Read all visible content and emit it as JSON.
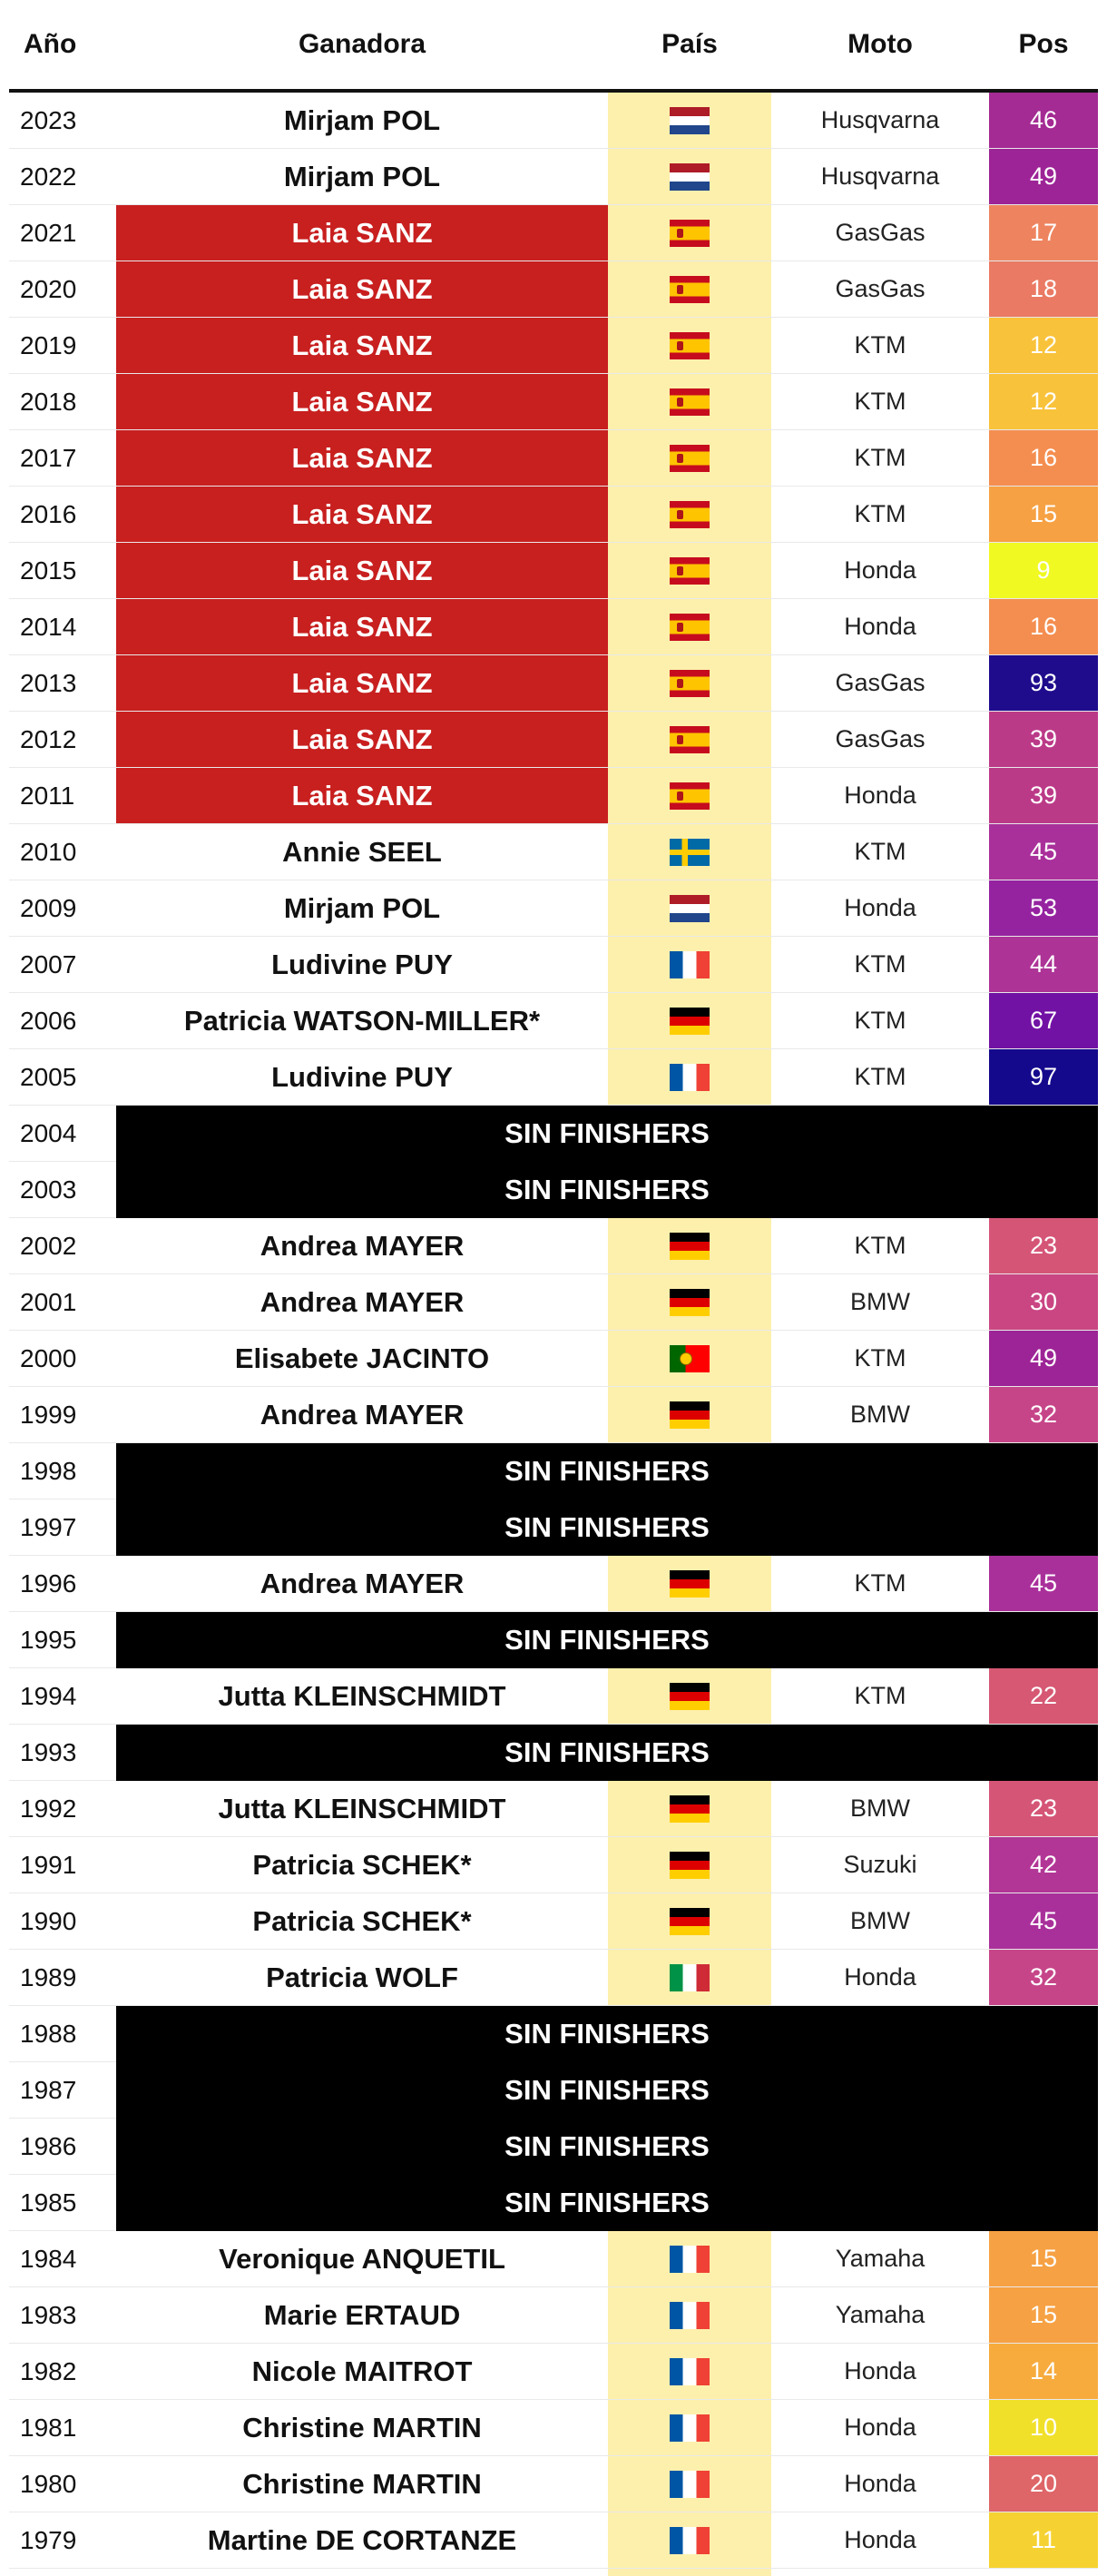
{
  "headers": {
    "year": "Año",
    "winner": "Ganadora",
    "country": "País",
    "bike": "Moto",
    "pos": "Pos"
  },
  "no_finishers_label": "SIN FINISHERS",
  "rows": [
    {
      "year": "2023",
      "name": "Mirjam POL",
      "flag": "nl",
      "bike": "Husqvarna",
      "pos": "46",
      "pos_color": "#a42b93"
    },
    {
      "year": "2022",
      "name": "Mirjam POL",
      "flag": "nl",
      "bike": "Husqvarna",
      "pos": "49",
      "pos_color": "#9d2496"
    },
    {
      "year": "2021",
      "name": "Laia SANZ",
      "flag": "es",
      "bike": "GasGas",
      "pos": "17",
      "pos_color": "#ee845f",
      "highlight": true
    },
    {
      "year": "2020",
      "name": "Laia SANZ",
      "flag": "es",
      "bike": "GasGas",
      "pos": "18",
      "pos_color": "#ea7a63",
      "highlight": true
    },
    {
      "year": "2019",
      "name": "Laia SANZ",
      "flag": "es",
      "bike": "KTM",
      "pos": "12",
      "pos_color": "#f8c23a",
      "highlight": true
    },
    {
      "year": "2018",
      "name": "Laia SANZ",
      "flag": "es",
      "bike": "KTM",
      "pos": "12",
      "pos_color": "#f8c23a",
      "highlight": true
    },
    {
      "year": "2017",
      "name": "Laia SANZ",
      "flag": "es",
      "bike": "KTM",
      "pos": "16",
      "pos_color": "#f48e50",
      "highlight": true
    },
    {
      "year": "2016",
      "name": "Laia SANZ",
      "flag": "es",
      "bike": "KTM",
      "pos": "15",
      "pos_color": "#f6a143",
      "highlight": true
    },
    {
      "year": "2015",
      "name": "Laia SANZ",
      "flag": "es",
      "bike": "Honda",
      "pos": "9",
      "pos_color": "#f0f921",
      "highlight": true
    },
    {
      "year": "2014",
      "name": "Laia SANZ",
      "flag": "es",
      "bike": "Honda",
      "pos": "16",
      "pos_color": "#f48e50",
      "highlight": true
    },
    {
      "year": "2013",
      "name": "Laia SANZ",
      "flag": "es",
      "bike": "GasGas",
      "pos": "93",
      "pos_color": "#1f0c8d",
      "highlight": true
    },
    {
      "year": "2012",
      "name": "Laia SANZ",
      "flag": "es",
      "bike": "GasGas",
      "pos": "39",
      "pos_color": "#bb3a88",
      "highlight": true
    },
    {
      "year": "2011",
      "name": "Laia SANZ",
      "flag": "es",
      "bike": "Honda",
      "pos": "39",
      "pos_color": "#bb3a88",
      "highlight": true
    },
    {
      "year": "2010",
      "name": "Annie SEEL",
      "flag": "se",
      "bike": "KTM",
      "pos": "45",
      "pos_color": "#a9309a"
    },
    {
      "year": "2009",
      "name": "Mirjam POL",
      "flag": "nl",
      "bike": "Honda",
      "pos": "53",
      "pos_color": "#9523a0"
    },
    {
      "year": "2007",
      "name": "Ludivine PUY",
      "flag": "fr",
      "bike": "KTM",
      "pos": "44",
      "pos_color": "#ad3396"
    },
    {
      "year": "2006",
      "name": "Patricia WATSON-MILLER*",
      "flag": "de",
      "bike": "KTM",
      "pos": "67",
      "pos_color": "#7212a4"
    },
    {
      "year": "2005",
      "name": "Ludivine PUY",
      "flag": "fr",
      "bike": "KTM",
      "pos": "97",
      "pos_color": "#14098c"
    },
    {
      "year": "2004",
      "no_finishers": true
    },
    {
      "year": "2003",
      "no_finishers": true
    },
    {
      "year": "2002",
      "name": "Andrea MAYER",
      "flag": "de",
      "bike": "KTM",
      "pos": "23",
      "pos_color": "#d55577"
    },
    {
      "year": "2001",
      "name": "Andrea MAYER",
      "flag": "de",
      "bike": "BMW",
      "pos": "30",
      "pos_color": "#c94683"
    },
    {
      "year": "2000",
      "name": "Elisabete JACINTO",
      "flag": "pt",
      "bike": "KTM",
      "pos": "49",
      "pos_color": "#9d2496"
    },
    {
      "year": "1999",
      "name": "Andrea MAYER",
      "flag": "de",
      "bike": "BMW",
      "pos": "32",
      "pos_color": "#c64589"
    },
    {
      "year": "1998",
      "no_finishers": true
    },
    {
      "year": "1997",
      "no_finishers": true
    },
    {
      "year": "1996",
      "name": "Andrea MAYER",
      "flag": "de",
      "bike": "KTM",
      "pos": "45",
      "pos_color": "#a9309a"
    },
    {
      "year": "1995",
      "no_finishers": true
    },
    {
      "year": "1994",
      "name": "Jutta KLEINSCHMIDT",
      "flag": "de",
      "bike": "KTM",
      "pos": "22",
      "pos_color": "#d65873"
    },
    {
      "year": "1993",
      "no_finishers": true
    },
    {
      "year": "1992",
      "name": "Jutta KLEINSCHMIDT",
      "flag": "de",
      "bike": "BMW",
      "pos": "23",
      "pos_color": "#d55577"
    },
    {
      "year": "1991",
      "name": "Patricia SCHEK*",
      "flag": "de",
      "bike": "Suzuki",
      "pos": "42",
      "pos_color": "#b23696"
    },
    {
      "year": "1990",
      "name": "Patricia SCHEK*",
      "flag": "de",
      "bike": "BMW",
      "pos": "45",
      "pos_color": "#a9309a"
    },
    {
      "year": "1989",
      "name": "Patricia WOLF",
      "flag": "it",
      "bike": "Honda",
      "pos": "32",
      "pos_color": "#c64589"
    },
    {
      "year": "1988",
      "no_finishers": true
    },
    {
      "year": "1987",
      "no_finishers": true
    },
    {
      "year": "1986",
      "no_finishers": true
    },
    {
      "year": "1985",
      "no_finishers": true
    },
    {
      "year": "1984",
      "name": "Veronique ANQUETIL",
      "flag": "fr",
      "bike": "Yamaha",
      "pos": "15",
      "pos_color": "#f6a143"
    },
    {
      "year": "1983",
      "name": "Marie ERTAUD",
      "flag": "fr",
      "bike": "Yamaha",
      "pos": "15",
      "pos_color": "#f6a143"
    },
    {
      "year": "1982",
      "name": "Nicole MAITROT",
      "flag": "fr",
      "bike": "Honda",
      "pos": "14",
      "pos_color": "#f7ab3d"
    },
    {
      "year": "1981",
      "name": "Christine MARTIN",
      "flag": "fr",
      "bike": "Honda",
      "pos": "10",
      "pos_color": "#f1e02a"
    },
    {
      "year": "1980",
      "name": "Christine MARTIN",
      "flag": "fr",
      "bike": "Honda",
      "pos": "20",
      "pos_color": "#de6568"
    },
    {
      "year": "1979",
      "name": "Martine DE CORTANZE",
      "flag": "fr",
      "bike": "Honda",
      "pos": "11",
      "pos_color": "#f5d232"
    }
  ]
}
